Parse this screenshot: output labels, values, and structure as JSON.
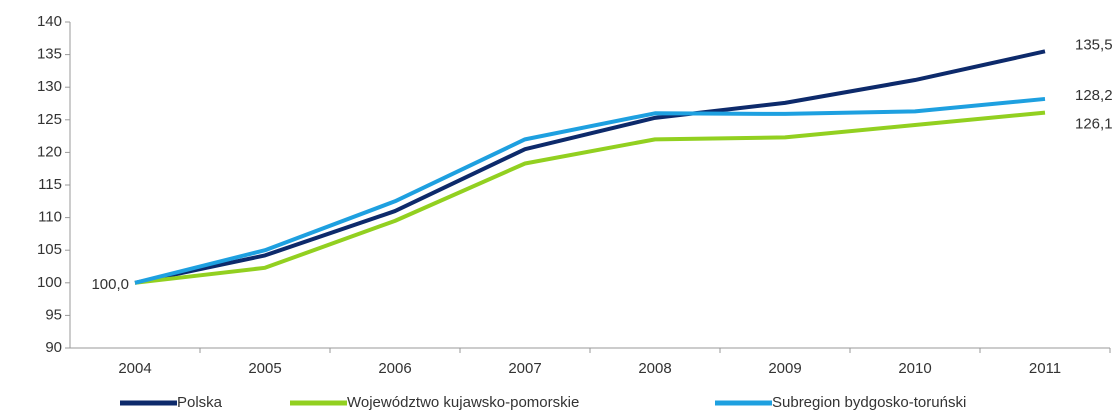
{
  "chart_data": {
    "type": "line",
    "categories": [
      "2004",
      "2005",
      "2006",
      "2007",
      "2008",
      "2009",
      "2010",
      "2011"
    ],
    "series": [
      {
        "name": "Polska",
        "color": "#0d2a6b",
        "values": [
          100.0,
          104.2,
          111.0,
          120.5,
          125.3,
          127.6,
          131.1,
          135.5
        ],
        "value_labels": [
          "100,0",
          null,
          null,
          null,
          null,
          null,
          null,
          "135,5"
        ]
      },
      {
        "name": "Województwo kujawsko-pomorskie",
        "color": "#92d020",
        "values": [
          100.0,
          102.3,
          109.5,
          118.3,
          122.0,
          122.3,
          124.2,
          126.1
        ],
        "value_labels": [
          null,
          null,
          null,
          null,
          null,
          null,
          null,
          "126,1"
        ]
      },
      {
        "name": "Subregion bydgosko-toruński",
        "color": "#1ea0e0",
        "values": [
          100.0,
          105.0,
          112.5,
          122.0,
          126.0,
          125.9,
          126.3,
          128.2
        ],
        "value_labels": [
          null,
          null,
          null,
          null,
          null,
          null,
          null,
          "128,2"
        ]
      }
    ],
    "ylim": [
      90,
      140
    ],
    "yticks": [
      90,
      95,
      100,
      105,
      110,
      115,
      120,
      125,
      130,
      135,
      140
    ],
    "legend": "bottom"
  }
}
